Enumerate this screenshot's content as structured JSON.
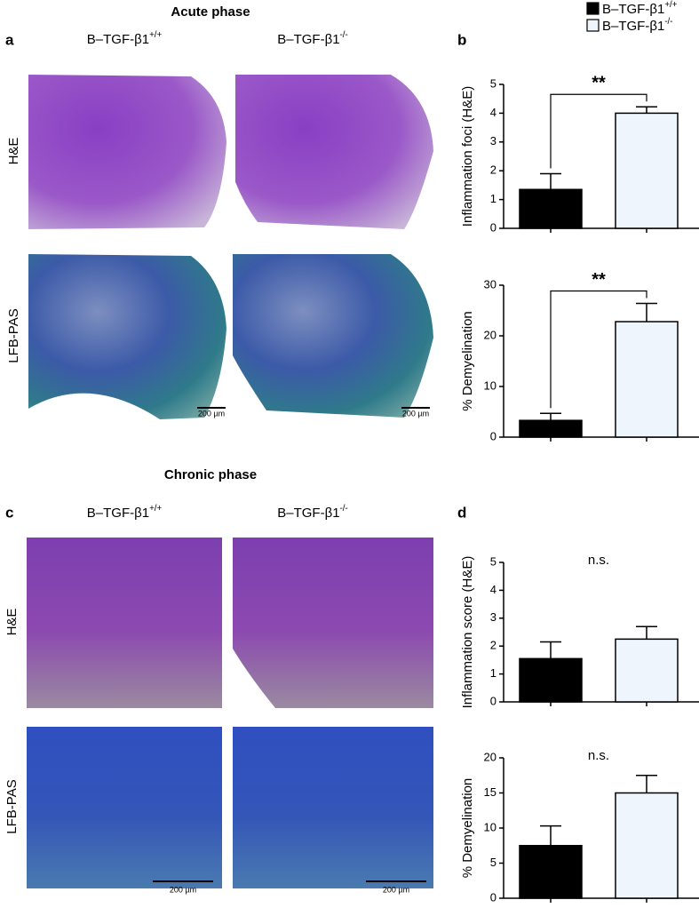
{
  "titles": {
    "acute": "Acute phase",
    "chronic": "Chronic phase"
  },
  "panel_letters": [
    "a",
    "b",
    "c",
    "d"
  ],
  "genotypes": [
    {
      "base": "B–TGF-β1",
      "sup": "+/+",
      "color": "#000000"
    },
    {
      "base": "B–TGF-β1",
      "sup": "-/-",
      "color": "#eef5fd"
    }
  ],
  "row_labels": [
    "H&E",
    "LFB-PAS"
  ],
  "scale_bar": "200 µm",
  "chart_data": [
    {
      "type": "bar",
      "ylabel": "Inflammation foci (H&E)",
      "values": [
        1.35,
        4.0
      ],
      "errors": [
        0.55,
        0.22
      ],
      "colors": [
        "#000000",
        "#eef5fd"
      ],
      "ylim": [
        0,
        5
      ],
      "yticks": [
        0,
        1,
        2,
        3,
        4,
        5
      ],
      "annotation": "**",
      "bracket": true
    },
    {
      "type": "bar",
      "ylabel": "% Demyelination",
      "values": [
        3.3,
        22.8
      ],
      "errors": [
        1.4,
        3.6
      ],
      "colors": [
        "#000000",
        "#eef5fd"
      ],
      "ylim": [
        0,
        30
      ],
      "yticks": [
        0,
        10,
        20,
        30
      ],
      "annotation": "**",
      "bracket": true
    },
    {
      "type": "bar",
      "ylabel": "Inflammation score (H&E)",
      "values": [
        1.55,
        2.25
      ],
      "errors": [
        0.6,
        0.45
      ],
      "colors": [
        "#000000",
        "#eef5fd"
      ],
      "ylim": [
        0,
        5
      ],
      "yticks": [
        0,
        1,
        2,
        3,
        4,
        5
      ],
      "annotation": "n.s.",
      "bracket": false
    },
    {
      "type": "bar",
      "ylabel": "% Demyelination",
      "values": [
        7.5,
        15.0
      ],
      "errors": [
        2.8,
        2.5
      ],
      "colors": [
        "#000000",
        "#eef5fd"
      ],
      "ylim": [
        0,
        20
      ],
      "yticks": [
        0,
        5,
        10,
        15,
        20
      ],
      "annotation": "n.s.",
      "bracket": false
    }
  ]
}
